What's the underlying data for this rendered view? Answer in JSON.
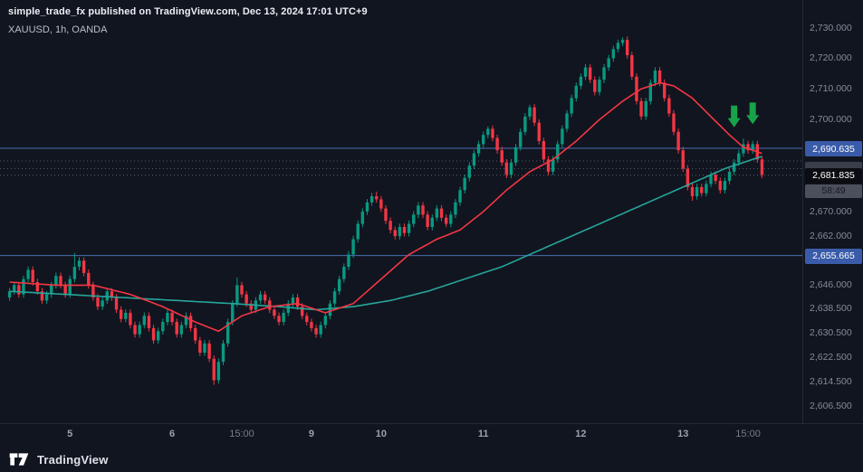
{
  "header": {
    "attribution": "simple_trade_fx published on TradingView.com, Dec 13, 2024 17:01 UTC+9",
    "symbol_line": "XAUUSD, 1h, OANDA"
  },
  "footer": {
    "brand": "TradingView"
  },
  "colors": {
    "background": "#11151f",
    "up": "#089981",
    "down": "#f23645",
    "ma_fast": "#f23645",
    "ma_slow": "#26a69a",
    "level_line": "#4a6fb5",
    "level_label_bg": "#3a5ba9",
    "current_label_bg": "#0b0d12",
    "dotted_line": "#6b7083",
    "current_dashed": "#9598a1",
    "arrow": "#18a34a",
    "axis_text": "#868b98"
  },
  "chart_data": {
    "type": "candlestick",
    "symbol": "XAUUSD",
    "timeframe": "1h",
    "exchange": "OANDA",
    "title": "XAUUSD, 1h, OANDA",
    "grid": "off",
    "legend_position": "none",
    "price_range": [
      2601,
      2739
    ],
    "open_rule": "prev_close",
    "first_open": 2642,
    "default_wick": 1.1,
    "closes": [
      2644,
      2646,
      2643,
      2648,
      2651,
      2647,
      2644,
      2641,
      2643,
      2646,
      2649,
      2646,
      2643,
      2648,
      2652,
      2654,
      2650,
      2646,
      2642,
      2639,
      2641,
      2644,
      2642,
      2638,
      2635,
      2637,
      2633,
      2630,
      2633,
      2636,
      2632,
      2628,
      2631,
      2634,
      2637,
      2634,
      2630,
      2633,
      2636,
      2632,
      2628,
      2624,
      2627,
      2622,
      2615,
      2621,
      2627,
      2634,
      2640,
      2646,
      2643,
      2640,
      2638,
      2641,
      2643,
      2641,
      2638,
      2636,
      2634,
      2637,
      2640,
      2642,
      2639,
      2636,
      2634,
      2632,
      2630,
      2633,
      2636,
      2640,
      2644,
      2648,
      2652,
      2656,
      2661,
      2666,
      2670,
      2673,
      2675,
      2674,
      2671,
      2667,
      2664,
      2662,
      2665,
      2663,
      2666,
      2669,
      2672,
      2669,
      2665,
      2668,
      2671,
      2668,
      2666,
      2669,
      2673,
      2677,
      2681,
      2685,
      2689,
      2692,
      2695,
      2697,
      2694,
      2690,
      2686,
      2682,
      2686,
      2691,
      2696,
      2701,
      2704,
      2699,
      2693,
      2687,
      2683,
      2687,
      2692,
      2697,
      2702,
      2707,
      2711,
      2714,
      2717,
      2713,
      2709,
      2713,
      2717,
      2720,
      2723,
      2725,
      2726,
      2721,
      2714,
      2706,
      2701,
      2706,
      2712,
      2716,
      2712,
      2707,
      2702,
      2696,
      2690,
      2684,
      2678,
      2675,
      2678,
      2676,
      2679,
      2682,
      2680,
      2677,
      2680,
      2683,
      2686,
      2689,
      2692,
      2690,
      2692,
      2687,
      2682
    ],
    "wick_overrides": {
      "14": {
        "high": 2656.5
      },
      "44": {
        "low": 2613.5
      },
      "49": {
        "high": 2648.5
      },
      "79": {
        "high": 2676.5
      },
      "103": {
        "high": 2697.8
      },
      "112": {
        "high": 2704.8
      },
      "132": {
        "high": 2726.8
      },
      "147": {
        "low": 2673.5
      },
      "158": {
        "high": 2693.8
      }
    },
    "ma_fast_anchors": [
      [
        0,
        2647
      ],
      [
        10,
        2646
      ],
      [
        18,
        2646
      ],
      [
        26,
        2643
      ],
      [
        33,
        2639
      ],
      [
        40,
        2634
      ],
      [
        45,
        2631
      ],
      [
        50,
        2636
      ],
      [
        56,
        2639
      ],
      [
        62,
        2640
      ],
      [
        68,
        2637
      ],
      [
        74,
        2640
      ],
      [
        80,
        2648
      ],
      [
        86,
        2656
      ],
      [
        92,
        2661
      ],
      [
        97,
        2664
      ],
      [
        102,
        2670
      ],
      [
        107,
        2677
      ],
      [
        112,
        2683
      ],
      [
        117,
        2687
      ],
      [
        122,
        2693
      ],
      [
        127,
        2700
      ],
      [
        132,
        2706
      ],
      [
        136,
        2710
      ],
      [
        140,
        2712
      ],
      [
        143,
        2711
      ],
      [
        147,
        2707
      ],
      [
        151,
        2701
      ],
      [
        155,
        2695
      ],
      [
        158,
        2691
      ],
      [
        162,
        2689
      ]
    ],
    "ma_slow_anchors": [
      [
        0,
        2644
      ],
      [
        12,
        2643
      ],
      [
        24,
        2642
      ],
      [
        36,
        2641
      ],
      [
        48,
        2640
      ],
      [
        58,
        2639
      ],
      [
        66,
        2638
      ],
      [
        74,
        2639
      ],
      [
        82,
        2641
      ],
      [
        90,
        2644
      ],
      [
        98,
        2648
      ],
      [
        106,
        2652
      ],
      [
        112,
        2656
      ],
      [
        118,
        2660
      ],
      [
        124,
        2664
      ],
      [
        130,
        2668
      ],
      [
        136,
        2672
      ],
      [
        142,
        2676
      ],
      [
        148,
        2680
      ],
      [
        154,
        2684
      ],
      [
        158,
        2686
      ],
      [
        162,
        2688
      ]
    ],
    "levels": [
      {
        "value": 2690.635,
        "label": "2,690.635"
      },
      {
        "value": 2655.665,
        "label": "2,655.665"
      }
    ],
    "dotted_levels": [
      2686.5,
      2684.0
    ],
    "current_price": {
      "value": 2681.835,
      "label": "2,681.835",
      "countdown": "58:49"
    },
    "y_ticks": [
      {
        "v": 2730.0,
        "label": "2,730.000"
      },
      {
        "v": 2720.0,
        "label": "2,720.000"
      },
      {
        "v": 2710.0,
        "label": "2,710.000"
      },
      {
        "v": 2700.0,
        "label": "2,700.000"
      },
      {
        "v": 2670.0,
        "label": "2,670.000"
      },
      {
        "v": 2662.0,
        "label": "2,662.000"
      },
      {
        "v": 2646.0,
        "label": "2,646.000"
      },
      {
        "v": 2638.5,
        "label": "2,638.500"
      },
      {
        "v": 2630.5,
        "label": "2,630.500"
      },
      {
        "v": 2622.5,
        "label": "2,622.500"
      },
      {
        "v": 2614.5,
        "label": "2,614.500"
      },
      {
        "v": 2606.5,
        "label": "2,606.500"
      }
    ],
    "x_ticks": [
      {
        "idx": 13,
        "label": "5",
        "major": true
      },
      {
        "idx": 35,
        "label": "6",
        "major": true
      },
      {
        "idx": 50,
        "label": "15:00",
        "major": false
      },
      {
        "idx": 65,
        "label": "9",
        "major": true
      },
      {
        "idx": 80,
        "label": "10",
        "major": true
      },
      {
        "idx": 102,
        "label": "11",
        "major": true
      },
      {
        "idx": 123,
        "label": "12",
        "major": true
      },
      {
        "idx": 145,
        "label": "13",
        "major": true
      },
      {
        "idx": 159,
        "label": "15:00",
        "major": false
      }
    ],
    "arrows": [
      {
        "idx": 156,
        "price": 2697.5,
        "direction": "down"
      },
      {
        "idx": 160,
        "price": 2698.5,
        "direction": "down"
      }
    ]
  }
}
